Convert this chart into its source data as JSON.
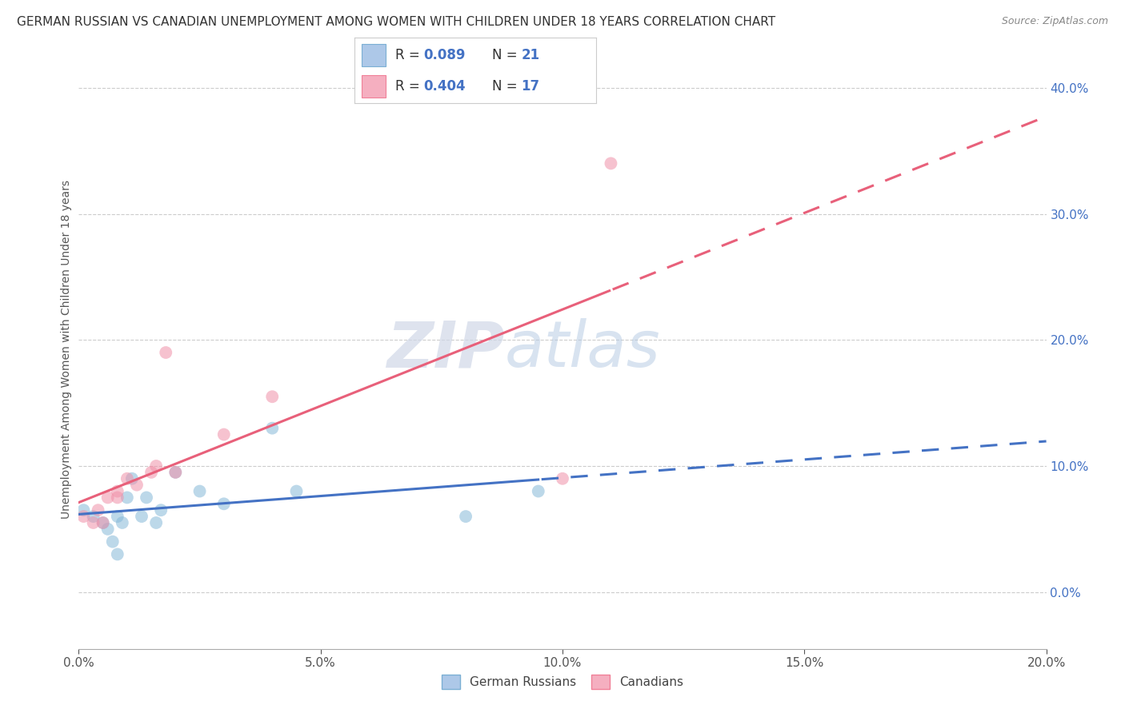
{
  "title": "GERMAN RUSSIAN VS CANADIAN UNEMPLOYMENT AMONG WOMEN WITH CHILDREN UNDER 18 YEARS CORRELATION CHART",
  "source": "Source: ZipAtlas.com",
  "ylabel": "Unemployment Among Women with Children Under 18 years",
  "xlim": [
    0.0,
    0.2
  ],
  "ylim": [
    -0.045,
    0.43
  ],
  "xlabel_vals": [
    0.0,
    0.05,
    0.1,
    0.15,
    0.2
  ],
  "xlabel_labels": [
    "0.0%",
    "5.0%",
    "10.0%",
    "15.0%",
    "20.0%"
  ],
  "right_ytick_vals": [
    0.0,
    0.1,
    0.2,
    0.3,
    0.4
  ],
  "right_ytick_labels": [
    "0.0%",
    "10.0%",
    "20.0%",
    "30.0%",
    "40.0%"
  ],
  "legend_color1": "#adc8e8",
  "legend_color2": "#f5afc0",
  "watermark_zip": "ZIP",
  "watermark_atlas": "atlas",
  "german_russian_x": [
    0.001,
    0.003,
    0.005,
    0.006,
    0.007,
    0.008,
    0.008,
    0.009,
    0.01,
    0.011,
    0.013,
    0.014,
    0.016,
    0.017,
    0.02,
    0.025,
    0.03,
    0.04,
    0.045,
    0.08,
    0.095
  ],
  "german_russian_y": [
    0.065,
    0.06,
    0.055,
    0.05,
    0.04,
    0.06,
    0.03,
    0.055,
    0.075,
    0.09,
    0.06,
    0.075,
    0.055,
    0.065,
    0.095,
    0.08,
    0.07,
    0.13,
    0.08,
    0.06,
    0.08
  ],
  "canadian_x": [
    0.001,
    0.003,
    0.004,
    0.005,
    0.006,
    0.008,
    0.008,
    0.01,
    0.012,
    0.015,
    0.016,
    0.018,
    0.02,
    0.03,
    0.04,
    0.1,
    0.11
  ],
  "canadian_y": [
    0.06,
    0.055,
    0.065,
    0.055,
    0.075,
    0.08,
    0.075,
    0.09,
    0.085,
    0.095,
    0.1,
    0.19,
    0.095,
    0.125,
    0.155,
    0.09,
    0.34
  ],
  "gr_line_color": "#4472c4",
  "ca_line_color": "#e8607a",
  "dot_color_gr": "#85b8d8",
  "dot_color_ca": "#f090a8",
  "dot_alpha": 0.55,
  "dot_size": 130,
  "background_color": "#ffffff",
  "grid_color": "#cccccc",
  "title_fontsize": 11,
  "source_fontsize": 9,
  "axis_fontsize": 11,
  "legend_fontsize": 12
}
